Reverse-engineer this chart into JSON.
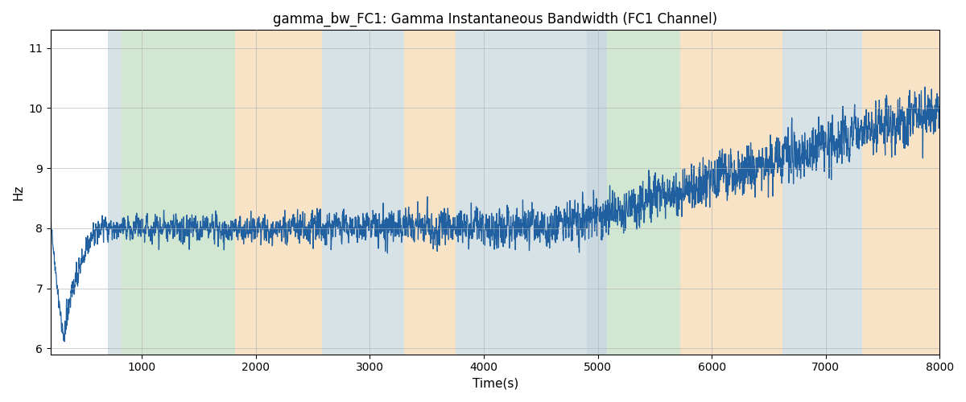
{
  "title": "gamma_bw_FC1: Gamma Instantaneous Bandwidth (FC1 Channel)",
  "xlabel": "Time(s)",
  "ylabel": "Hz",
  "xlim": [
    200,
    8000
  ],
  "ylim": [
    5.9,
    11.3
  ],
  "yticks": [
    6,
    7,
    8,
    9,
    10,
    11
  ],
  "xticks": [
    1000,
    2000,
    3000,
    4000,
    5000,
    6000,
    7000,
    8000
  ],
  "line_color": "#2060a0",
  "line_width": 0.9,
  "background_regions": [
    {
      "xmin": 700,
      "xmax": 820,
      "color": "#aec6cf",
      "alpha": 0.5
    },
    {
      "xmin": 820,
      "xmax": 1820,
      "color": "#90c490",
      "alpha": 0.4
    },
    {
      "xmin": 1820,
      "xmax": 2580,
      "color": "#f5c990",
      "alpha": 0.5
    },
    {
      "xmin": 2580,
      "xmax": 3300,
      "color": "#aec6cf",
      "alpha": 0.5
    },
    {
      "xmin": 3300,
      "xmax": 3750,
      "color": "#f5c990",
      "alpha": 0.5
    },
    {
      "xmin": 3750,
      "xmax": 4900,
      "color": "#aec6cf",
      "alpha": 0.5
    },
    {
      "xmin": 4900,
      "xmax": 5080,
      "color": "#aec6cf",
      "alpha": 0.65
    },
    {
      "xmin": 5080,
      "xmax": 5720,
      "color": "#90c490",
      "alpha": 0.4
    },
    {
      "xmin": 5720,
      "xmax": 6620,
      "color": "#f5c990",
      "alpha": 0.5
    },
    {
      "xmin": 6620,
      "xmax": 7320,
      "color": "#aec6cf",
      "alpha": 0.5
    },
    {
      "xmin": 7320,
      "xmax": 8000,
      "color": "#f5c990",
      "alpha": 0.5
    }
  ],
  "seed": 17,
  "n_points": 7800,
  "t_start": 200,
  "t_end": 8000
}
